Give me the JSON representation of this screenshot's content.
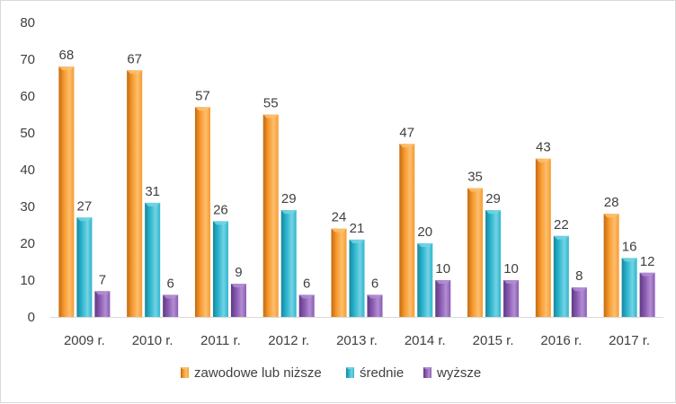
{
  "chart_data": {
    "type": "bar",
    "categories": [
      "2009 r.",
      "2010 r.",
      "2011 r.",
      "2012 r.",
      "2013 r.",
      "2014 r.",
      "2015 r.",
      "2016 r.",
      "2017 r."
    ],
    "series": [
      {
        "name": "zawodowe lub niższe",
        "values": [
          68,
          67,
          57,
          55,
          24,
          47,
          35,
          43,
          28
        ],
        "color": "#F79A2E",
        "color_dark": "#C46A10",
        "color_light": "#FDBF6F"
      },
      {
        "name": "średnie",
        "values": [
          27,
          31,
          26,
          29,
          21,
          20,
          29,
          22,
          16
        ],
        "color": "#2CB5CF",
        "color_dark": "#17879D",
        "color_light": "#74D3E3"
      },
      {
        "name": "wyższe",
        "values": [
          7,
          6,
          9,
          6,
          6,
          10,
          10,
          8,
          12
        ],
        "color": "#8A5AB3",
        "color_dark": "#5E3A80",
        "color_light": "#B28ED1"
      }
    ],
    "yticks": [
      0,
      10,
      20,
      30,
      40,
      50,
      60,
      70,
      80
    ],
    "ylim": [
      0,
      80
    ],
    "grid": false,
    "legend_position": "bottom",
    "data_labels": true
  }
}
